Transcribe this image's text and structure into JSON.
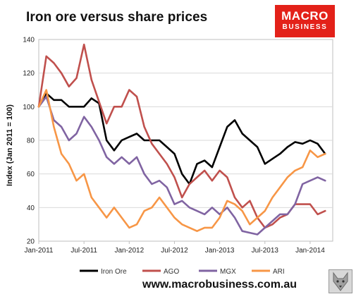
{
  "title": "Iron ore versus share prices",
  "logo": {
    "line1": "MACRO",
    "line2": "BUSINESS"
  },
  "footer_url": "www.macrobusiness.com.au",
  "colors": {
    "Iron Ore": "#000000",
    "AGO": "#c0504d",
    "MGX": "#8064a2",
    "ARI": "#f79646",
    "brand": "#e32119"
  },
  "icons": {
    "logo-mark": "wolf-head-icon"
  },
  "chart_data": {
    "type": "line",
    "title": "Iron ore versus share prices",
    "xlabel": "",
    "ylabel": "Index (Jan 2011 = 100)",
    "ylim": [
      20,
      140
    ],
    "yticks": [
      20,
      40,
      60,
      80,
      100,
      120,
      140
    ],
    "xticks": [
      "Jan-2011",
      "Jul-2011",
      "Jan-2012",
      "Jul-2012",
      "Jan-2013",
      "Jul-2013",
      "Jan-2014"
    ],
    "x_range": [
      "Jan-2011",
      "Apr-2014"
    ],
    "grid": "horizontal",
    "legend": "bottom",
    "x": [
      "Jan-2011",
      "Feb-2011",
      "Mar-2011",
      "Apr-2011",
      "May-2011",
      "Jun-2011",
      "Jul-2011",
      "Aug-2011",
      "Sep-2011",
      "Oct-2011",
      "Nov-2011",
      "Dec-2011",
      "Jan-2012",
      "Feb-2012",
      "Mar-2012",
      "Apr-2012",
      "May-2012",
      "Jun-2012",
      "Jul-2012",
      "Aug-2012",
      "Sep-2012",
      "Oct-2012",
      "Nov-2012",
      "Dec-2012",
      "Jan-2013",
      "Feb-2013",
      "Mar-2013",
      "Apr-2013",
      "May-2013",
      "Jun-2013",
      "Jul-2013",
      "Aug-2013",
      "Sep-2013",
      "Oct-2013",
      "Nov-2013",
      "Dec-2013",
      "Jan-2014",
      "Feb-2014",
      "Mar-2014"
    ],
    "series": [
      {
        "name": "Iron Ore",
        "values": [
          100,
          108,
          104,
          104,
          100,
          100,
          100,
          105,
          102,
          80,
          74,
          80,
          82,
          84,
          80,
          80,
          80,
          76,
          72,
          60,
          54,
          66,
          68,
          64,
          76,
          88,
          92,
          84,
          80,
          76,
          66,
          69,
          72,
          76,
          79,
          78,
          80,
          78,
          72
        ]
      },
      {
        "name": "AGO",
        "values": [
          100,
          130,
          126,
          120,
          112,
          117,
          137,
          116,
          103,
          90,
          100,
          100,
          110,
          106,
          88,
          78,
          72,
          66,
          58,
          46,
          54,
          58,
          62,
          56,
          62,
          58,
          46,
          40,
          44,
          34,
          28,
          30,
          34,
          36,
          42,
          42,
          42,
          36,
          38
        ]
      },
      {
        "name": "MGX",
        "values": [
          100,
          106,
          92,
          88,
          80,
          84,
          94,
          88,
          80,
          70,
          66,
          70,
          66,
          70,
          60,
          54,
          56,
          52,
          42,
          44,
          40,
          38,
          36,
          40,
          36,
          40,
          34,
          26,
          25,
          24,
          28,
          32,
          36,
          36,
          42,
          54,
          56,
          58,
          56
        ]
      },
      {
        "name": "ARI",
        "values": [
          100,
          110,
          88,
          72,
          66,
          56,
          60,
          46,
          40,
          34,
          40,
          34,
          28,
          30,
          38,
          40,
          46,
          40,
          34,
          30,
          28,
          26,
          28,
          28,
          34,
          44,
          42,
          38,
          30,
          34,
          38,
          46,
          52,
          58,
          62,
          64,
          74,
          70,
          72
        ]
      }
    ]
  }
}
